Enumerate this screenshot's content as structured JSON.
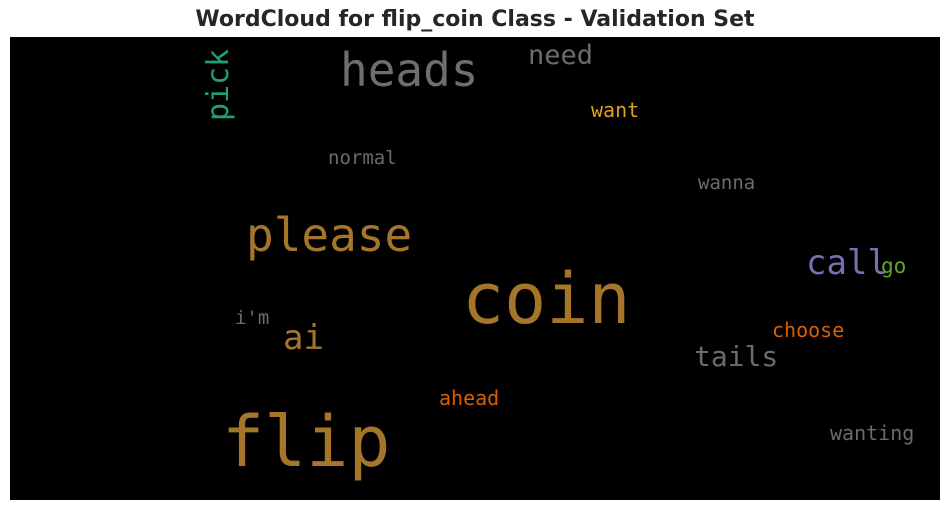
{
  "title": "WordCloud for flip_coin Class - Validation Set",
  "background_color": "#000000",
  "words": [
    {
      "id": "heads",
      "text": "heads",
      "color": "#6e6e6e",
      "orientation": "horizontal"
    },
    {
      "id": "need",
      "text": "need",
      "color": "#6b6b6b",
      "orientation": "horizontal"
    },
    {
      "id": "pick",
      "text": "pick",
      "color": "#1f9e77",
      "orientation": "vertical"
    },
    {
      "id": "want",
      "text": "want",
      "color": "#d9a31c",
      "orientation": "horizontal"
    },
    {
      "id": "normal",
      "text": "normal",
      "color": "#6b6b6b",
      "orientation": "horizontal"
    },
    {
      "id": "wanna",
      "text": "wanna",
      "color": "#6b6b6b",
      "orientation": "horizontal"
    },
    {
      "id": "please",
      "text": "please",
      "color": "#a5762a",
      "orientation": "horizontal"
    },
    {
      "id": "call",
      "text": "call",
      "color": "#7570b3",
      "orientation": "horizontal"
    },
    {
      "id": "go",
      "text": "go",
      "color": "#66a61e",
      "orientation": "horizontal"
    },
    {
      "id": "coin",
      "text": "coin",
      "color": "#a5762a",
      "orientation": "horizontal"
    },
    {
      "id": "im",
      "text": "i'm",
      "color": "#6b6b6b",
      "orientation": "horizontal"
    },
    {
      "id": "ai",
      "text": "ai",
      "color": "#a5762a",
      "orientation": "horizontal"
    },
    {
      "id": "choose",
      "text": "choose",
      "color": "#d95f02",
      "orientation": "horizontal"
    },
    {
      "id": "tails",
      "text": "tails",
      "color": "#6b6b6b",
      "orientation": "horizontal"
    },
    {
      "id": "ahead",
      "text": "ahead",
      "color": "#d95f02",
      "orientation": "horizontal"
    },
    {
      "id": "flip",
      "text": "flip",
      "color": "#a5762a",
      "orientation": "horizontal"
    },
    {
      "id": "wanting",
      "text": "wanting",
      "color": "#6b6b6b",
      "orientation": "horizontal"
    }
  ]
}
